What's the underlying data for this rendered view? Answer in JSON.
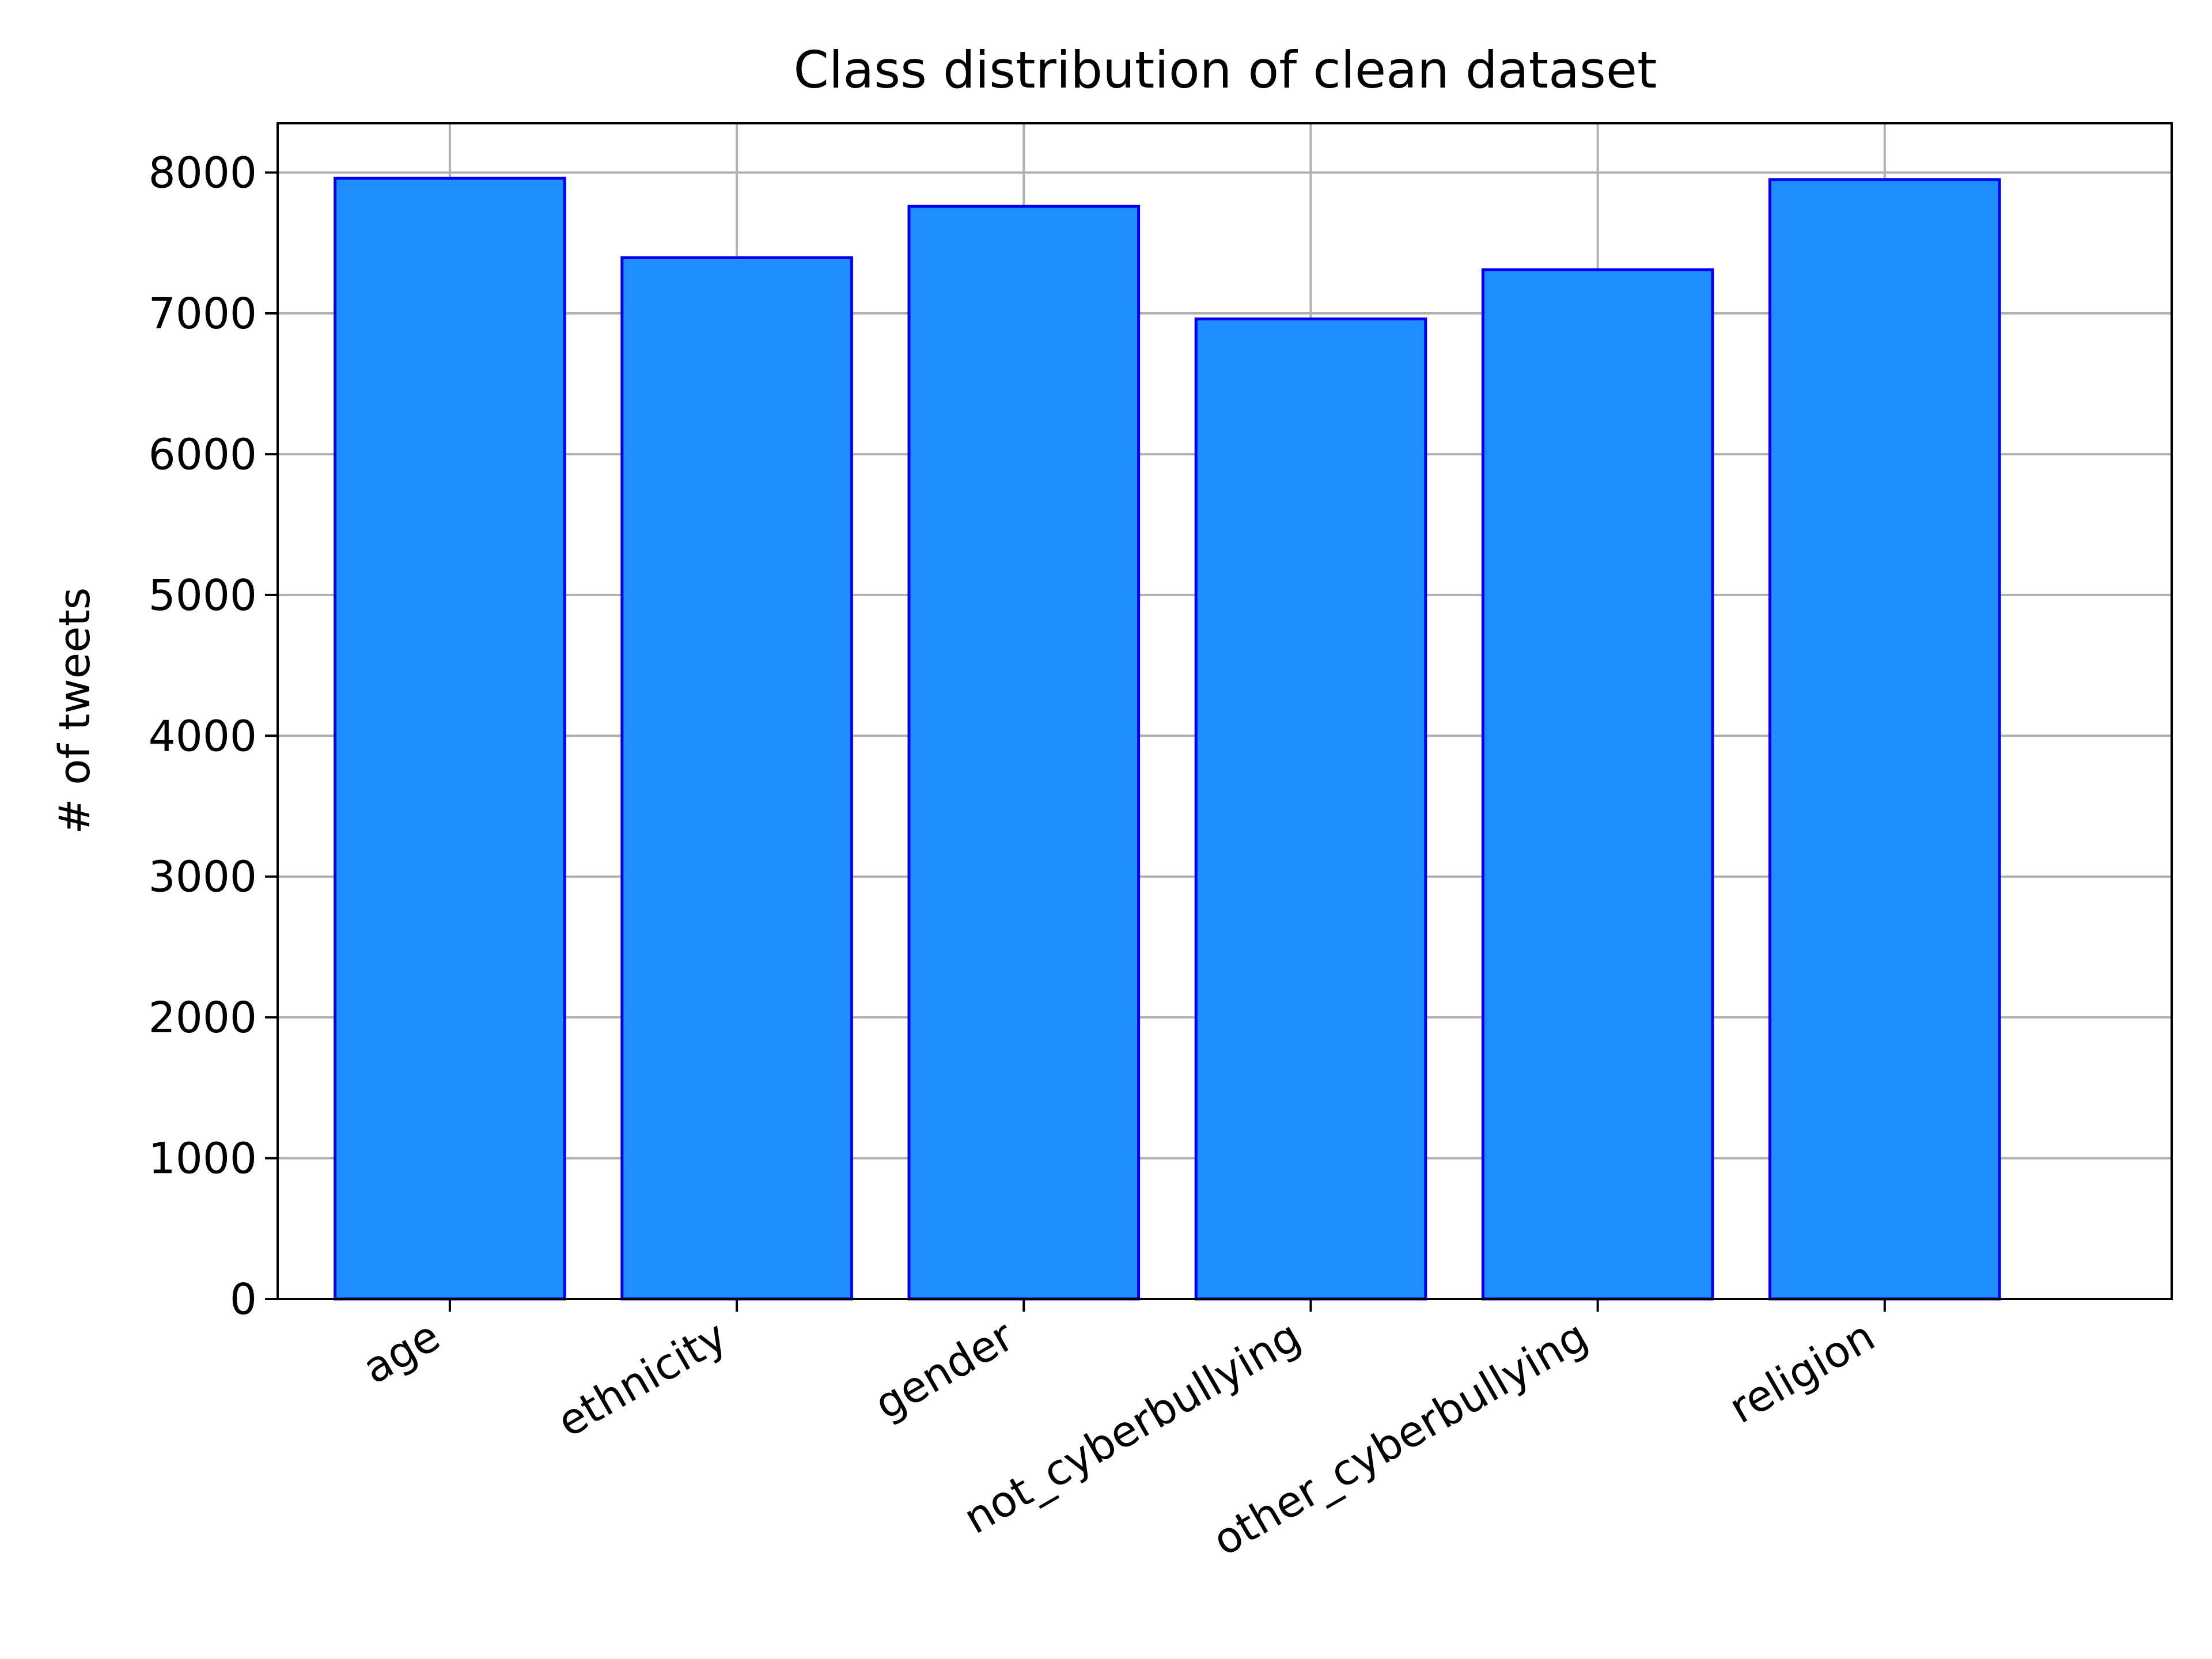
{
  "chart_data": {
    "type": "bar",
    "title": "Class distribution of clean dataset",
    "xlabel": "",
    "ylabel": "# of tweets",
    "categories": [
      "age",
      "ethnicity",
      "gender",
      "not_cyberbullying",
      "other_cyberbullying",
      "religion"
    ],
    "values": [
      7960,
      7395,
      7760,
      6960,
      7310,
      7950
    ],
    "ylim": [
      0,
      8350
    ],
    "yticks": [
      0,
      1000,
      2000,
      3000,
      4000,
      5000,
      6000,
      7000,
      8000
    ],
    "grid": true,
    "colors": {
      "bar_fill": "#1f8fff",
      "bar_edge": "#0000ee",
      "grid": "#b0b0b0",
      "axis": "#000000"
    }
  }
}
